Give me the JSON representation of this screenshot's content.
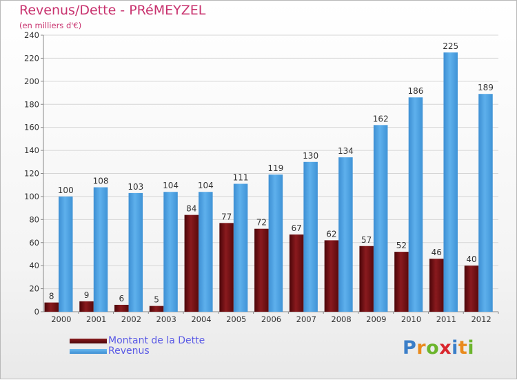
{
  "title": "Revenus/Dette - PRéMEYZEL",
  "subtitle": "(en milliers d'€)",
  "colors": {
    "dette": "#6e0c10",
    "revenus": "#4a9fe0",
    "title": "#c8326e",
    "legend_text": "#5a5ae6"
  },
  "legend": [
    {
      "label": "Montant de la Dette",
      "color": "#6e0c10"
    },
    {
      "label": "Revenus",
      "color": "#4a9fe0"
    }
  ],
  "logo": {
    "text": "Proxiti",
    "letters": [
      "P",
      "r",
      "o",
      "x",
      "i",
      "t",
      "i"
    ],
    "letter_colors": [
      "#3a7ec8",
      "#e98a1d",
      "#6cb52d",
      "#d9272e",
      "#3a7ec8",
      "#e98a1d",
      "#6cb52d"
    ]
  },
  "chart_data": {
    "type": "bar",
    "title": "Revenus/Dette - PRéMEYZEL",
    "subtitle": "(en milliers d'€)",
    "categories": [
      "2000",
      "2001",
      "2002",
      "2003",
      "2004",
      "2005",
      "2006",
      "2007",
      "2008",
      "2009",
      "2010",
      "2011",
      "2012"
    ],
    "series": [
      {
        "name": "Montant de la Dette",
        "color": "#6e0c10",
        "values": [
          8,
          9,
          6,
          5,
          84,
          77,
          72,
          67,
          62,
          57,
          52,
          46,
          40
        ]
      },
      {
        "name": "Revenus",
        "color": "#4a9fe0",
        "values": [
          100,
          108,
          103,
          104,
          104,
          111,
          119,
          130,
          134,
          162,
          186,
          225,
          189
        ]
      }
    ],
    "ylim": [
      0,
      240
    ],
    "yticks": [
      0,
      20,
      40,
      60,
      80,
      100,
      120,
      140,
      160,
      180,
      200,
      220,
      240
    ],
    "grid": true,
    "legend_position": "bottom-left",
    "data_labels": true
  }
}
